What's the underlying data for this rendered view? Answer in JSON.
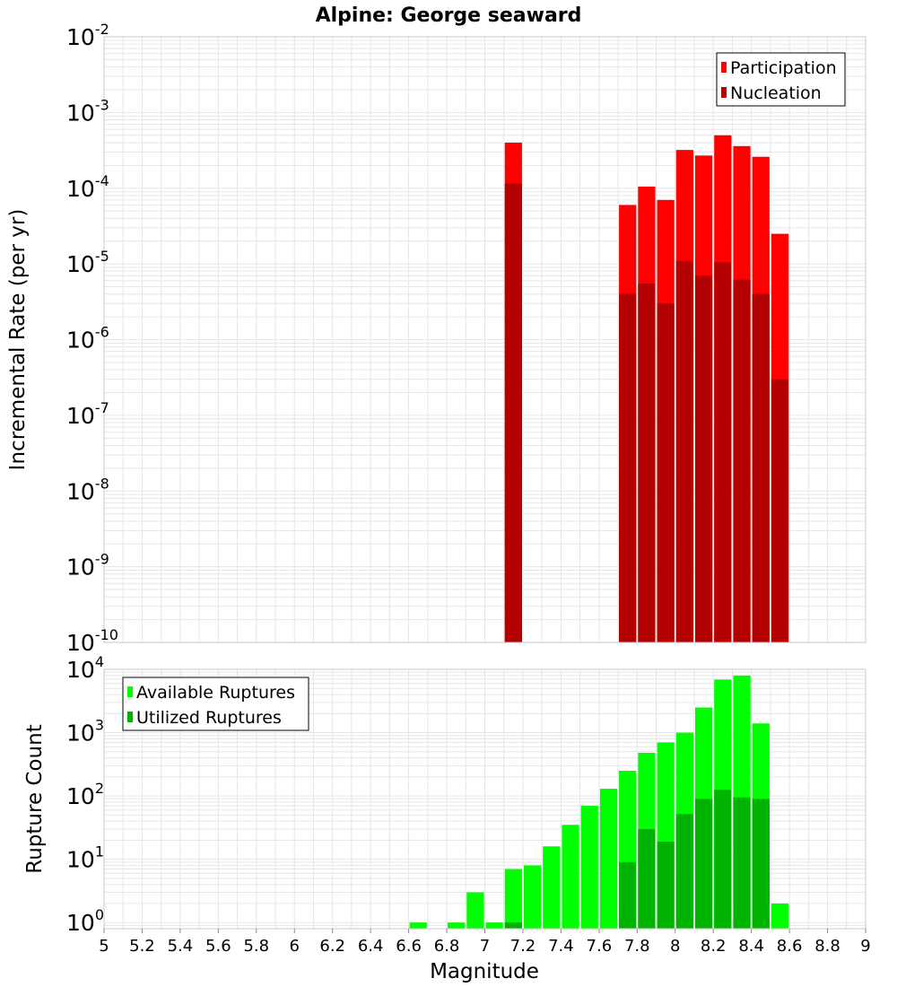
{
  "title": "Alpine: George seaward",
  "xlabel": "Magnitude",
  "x_tick_labels": [
    "5",
    "5.2",
    "5.4",
    "5.6",
    "5.8",
    "6",
    "6.2",
    "6.4",
    "6.6",
    "6.8",
    "7",
    "7.2",
    "7.4",
    "7.6",
    "7.8",
    "8",
    "8.2",
    "8.4",
    "8.6",
    "8.8",
    "9"
  ],
  "colors": {
    "participation": "#ff0000",
    "nucleation": "#b30000",
    "available": "#00ff00",
    "utilized": "#00b300",
    "grid": "#e6e6e6",
    "frame": "#c8c8c8"
  },
  "chart_data": [
    {
      "type": "bar",
      "ylabel": "Incremental Rate (per yr)",
      "yscale": "log",
      "ylim": [
        1e-10,
        0.01
      ],
      "xlim": [
        5,
        9
      ],
      "y_tick_exponents": [
        "-10",
        "-9",
        "-8",
        "-7",
        "-6",
        "-5",
        "-4",
        "-3",
        "-2"
      ],
      "grid": true,
      "legend_position": "top-right",
      "series": [
        {
          "name": "Participation",
          "color": "#ff0000",
          "points": [
            {
              "x": 7.15,
              "y": 0.0004
            },
            {
              "x": 7.75,
              "y": 6e-05
            },
            {
              "x": 7.85,
              "y": 0.000105
            },
            {
              "x": 7.95,
              "y": 7e-05
            },
            {
              "x": 8.05,
              "y": 0.00032
            },
            {
              "x": 8.15,
              "y": 0.00027
            },
            {
              "x": 8.25,
              "y": 0.0005
            },
            {
              "x": 8.35,
              "y": 0.00036
            },
            {
              "x": 8.45,
              "y": 0.00026
            },
            {
              "x": 8.55,
              "y": 2.5e-05
            }
          ]
        },
        {
          "name": "Nucleation",
          "color": "#b30000",
          "points": [
            {
              "x": 7.15,
              "y": 0.000115
            },
            {
              "x": 7.75,
              "y": 4e-06
            },
            {
              "x": 7.85,
              "y": 5.5e-06
            },
            {
              "x": 7.95,
              "y": 3e-06
            },
            {
              "x": 8.05,
              "y": 1.1e-05
            },
            {
              "x": 8.15,
              "y": 7e-06
            },
            {
              "x": 8.25,
              "y": 1.05e-05
            },
            {
              "x": 8.35,
              "y": 6.2e-06
            },
            {
              "x": 8.45,
              "y": 4e-06
            },
            {
              "x": 8.55,
              "y": 3e-07
            }
          ]
        }
      ]
    },
    {
      "type": "bar",
      "ylabel": "Rupture Count",
      "yscale": "log",
      "ylim": [
        0.8,
        10000
      ],
      "xlim": [
        5,
        9
      ],
      "y_tick_exponents": [
        "0",
        "1",
        "2",
        "3",
        "4"
      ],
      "grid": true,
      "legend_position": "top-left",
      "series": [
        {
          "name": "Available Ruptures",
          "color": "#00ff00",
          "points": [
            {
              "x": 6.65,
              "y": 1
            },
            {
              "x": 6.85,
              "y": 1
            },
            {
              "x": 6.95,
              "y": 3
            },
            {
              "x": 7.05,
              "y": 1
            },
            {
              "x": 7.15,
              "y": 7
            },
            {
              "x": 7.25,
              "y": 8
            },
            {
              "x": 7.35,
              "y": 16
            },
            {
              "x": 7.45,
              "y": 35
            },
            {
              "x": 7.55,
              "y": 70
            },
            {
              "x": 7.65,
              "y": 130
            },
            {
              "x": 7.75,
              "y": 250
            },
            {
              "x": 7.85,
              "y": 480
            },
            {
              "x": 7.95,
              "y": 700
            },
            {
              "x": 8.05,
              "y": 1000
            },
            {
              "x": 8.15,
              "y": 2500
            },
            {
              "x": 8.25,
              "y": 6900
            },
            {
              "x": 8.35,
              "y": 8000
            },
            {
              "x": 8.45,
              "y": 1400
            },
            {
              "x": 8.55,
              "y": 2
            }
          ]
        },
        {
          "name": "Utilized Ruptures",
          "color": "#00b300",
          "points": [
            {
              "x": 7.15,
              "y": 1
            },
            {
              "x": 7.75,
              "y": 9
            },
            {
              "x": 7.85,
              "y": 30
            },
            {
              "x": 7.95,
              "y": 19
            },
            {
              "x": 8.05,
              "y": 52
            },
            {
              "x": 8.15,
              "y": 90
            },
            {
              "x": 8.25,
              "y": 125
            },
            {
              "x": 8.35,
              "y": 95
            },
            {
              "x": 8.45,
              "y": 90
            }
          ]
        }
      ]
    }
  ]
}
